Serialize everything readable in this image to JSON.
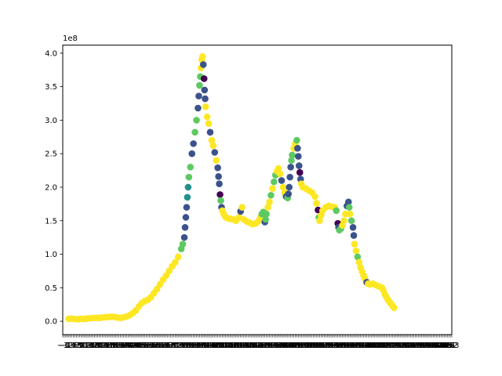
{
  "chart_data": {
    "type": "scatter",
    "title": "",
    "xlabel": "",
    "ylabel": "",
    "y_offset_text": "1e8",
    "xlim": [
      -3,
      253
    ],
    "ylim": [
      -20000000,
      412000000
    ],
    "yticks": [
      {
        "value": 0,
        "label": "0.0"
      },
      {
        "value": 50000000,
        "label": "0.5"
      },
      {
        "value": 100000000,
        "label": "1.0"
      },
      {
        "value": 150000000,
        "label": "1.5"
      },
      {
        "value": 200000000,
        "label": "2.0"
      },
      {
        "value": 250000000,
        "label": "2.5"
      },
      {
        "value": 300000000,
        "label": "3.0"
      },
      {
        "value": 350000000,
        "label": "3.5"
      },
      {
        "value": 400000000,
        "label": "4.0"
      }
    ],
    "xticks_note": "dense overlapping integer tick labels",
    "xtick_step": 1,
    "grid": false,
    "legend": "none",
    "colormap": "viridis",
    "color_levels": {
      "0": "#440154",
      "1": "#3b528b",
      "2": "#21918c",
      "3": "#5ec962",
      "4": "#fde725"
    },
    "series_points": [
      [
        1,
        3500000.0,
        4
      ],
      [
        3,
        3800000.0,
        4
      ],
      [
        5,
        3200000.0,
        4
      ],
      [
        7,
        3000000.0,
        4
      ],
      [
        9,
        3600000.0,
        4
      ],
      [
        11,
        3400000.0,
        4
      ],
      [
        13,
        4000000.0,
        4
      ],
      [
        15,
        4500000.0,
        4
      ],
      [
        17,
        4800000.0,
        4
      ],
      [
        19,
        5200000.0,
        4
      ],
      [
        21,
        5000000.0,
        4
      ],
      [
        23,
        5500000.0,
        4
      ],
      [
        25,
        6000000.0,
        4
      ],
      [
        27,
        6300000.0,
        4
      ],
      [
        29,
        6800000.0,
        4
      ],
      [
        31,
        6500000.0,
        4
      ],
      [
        33,
        5500000.0,
        4
      ],
      [
        35,
        5000000.0,
        4
      ],
      [
        37,
        5800000.0,
        4
      ],
      [
        39,
        7000000.0,
        4
      ],
      [
        41,
        9000000.0,
        4
      ],
      [
        43,
        12000000.0,
        4
      ],
      [
        45,
        16000000.0,
        4
      ],
      [
        47,
        22000000.0,
        4
      ],
      [
        49,
        27000000.0,
        4
      ],
      [
        51,
        30000000.0,
        4
      ],
      [
        53,
        32000000.0,
        4
      ],
      [
        55,
        36000000.0,
        4
      ],
      [
        57,
        42000000.0,
        4
      ],
      [
        59,
        48000000.0,
        4
      ],
      [
        61,
        55000000.0,
        4
      ],
      [
        63,
        62000000.0,
        4
      ],
      [
        65,
        68000000.0,
        4
      ],
      [
        67,
        75000000.0,
        4
      ],
      [
        69,
        82000000.0,
        4
      ],
      [
        71,
        88000000.0,
        4
      ],
      [
        73,
        96000000.0,
        4
      ],
      [
        75,
        108000000.0,
        3
      ],
      [
        76,
        115000000.0,
        3
      ],
      [
        77,
        125000000.0,
        1
      ],
      [
        77.5,
        140000000.0,
        1
      ],
      [
        78,
        155000000.0,
        1
      ],
      [
        78.5,
        170000000.0,
        1
      ],
      [
        79,
        185000000.0,
        2
      ],
      [
        79.5,
        200000000.0,
        2
      ],
      [
        80,
        215000000.0,
        3
      ],
      [
        81,
        230000000.0,
        3
      ],
      [
        82,
        250000000.0,
        1
      ],
      [
        83,
        265000000.0,
        1
      ],
      [
        84,
        282000000.0,
        3
      ],
      [
        85,
        300000000.0,
        3
      ],
      [
        86,
        318000000.0,
        1
      ],
      [
        86.5,
        336000000.0,
        1
      ],
      [
        87,
        352000000.0,
        3
      ],
      [
        87.5,
        365000000.0,
        3
      ],
      [
        88,
        378000000.0,
        4
      ],
      [
        88.5,
        390000000.0,
        4
      ],
      [
        89,
        395000000.0,
        4
      ],
      [
        89.5,
        383000000.0,
        1
      ],
      [
        90,
        362000000.0,
        0
      ],
      [
        90.3,
        345000000.0,
        1
      ],
      [
        90.7,
        332000000.0,
        1
      ],
      [
        91,
        320000000.0,
        4
      ],
      [
        92,
        305000000.0,
        4
      ],
      [
        93,
        295000000.0,
        4
      ],
      [
        94,
        282000000.0,
        1
      ],
      [
        95,
        270000000.0,
        4
      ],
      [
        96,
        262000000.0,
        4
      ],
      [
        97,
        252000000.0,
        1
      ],
      [
        98,
        240000000.0,
        4
      ],
      [
        99,
        229000000.0,
        1
      ],
      [
        99.5,
        216000000.0,
        1
      ],
      [
        100,
        205000000.0,
        1
      ],
      [
        100.5,
        189000000.0,
        0
      ],
      [
        101,
        180000000.0,
        3
      ],
      [
        101.5,
        170000000.0,
        1
      ],
      [
        102,
        165000000.0,
        4
      ],
      [
        103,
        160000000.0,
        4
      ],
      [
        104,
        156000000.0,
        4
      ],
      [
        105,
        154000000.0,
        4
      ],
      [
        107,
        153000000.0,
        4
      ],
      [
        109,
        152000000.0,
        4
      ],
      [
        111,
        150000000.0,
        4
      ],
      [
        113,
        155000000.0,
        4
      ],
      [
        114,
        164000000.0,
        1
      ],
      [
        115,
        170000000.0,
        4
      ],
      [
        116,
        152000000.0,
        4
      ],
      [
        118,
        149000000.0,
        4
      ],
      [
        120,
        147000000.0,
        4
      ],
      [
        122,
        145000000.0,
        4
      ],
      [
        124,
        146000000.0,
        4
      ],
      [
        126,
        150000000.0,
        4
      ],
      [
        127,
        155000000.0,
        4
      ],
      [
        128,
        160000000.0,
        3
      ],
      [
        129,
        163000000.0,
        3
      ],
      [
        130,
        148000000.0,
        1
      ],
      [
        130.5,
        152000000.0,
        3
      ],
      [
        131,
        160000000.0,
        3
      ],
      [
        132,
        170000000.0,
        4
      ],
      [
        133,
        178000000.0,
        4
      ],
      [
        134,
        188000000.0,
        3
      ],
      [
        135,
        198000000.0,
        4
      ],
      [
        136,
        208000000.0,
        3
      ],
      [
        137,
        218000000.0,
        3
      ],
      [
        138,
        224000000.0,
        4
      ],
      [
        139,
        228000000.0,
        4
      ],
      [
        140,
        220000000.0,
        4
      ],
      [
        141,
        210000000.0,
        1
      ],
      [
        142,
        200000000.0,
        4
      ],
      [
        143,
        192000000.0,
        4
      ],
      [
        144,
        186000000.0,
        1
      ],
      [
        145,
        184000000.0,
        3
      ],
      [
        145.5,
        190000000.0,
        1
      ],
      [
        146,
        200000000.0,
        1
      ],
      [
        146.5,
        215000000.0,
        1
      ],
      [
        147,
        230000000.0,
        1
      ],
      [
        147.5,
        240000000.0,
        3
      ],
      [
        148,
        248000000.0,
        3
      ],
      [
        149,
        258000000.0,
        4
      ],
      [
        150,
        265000000.0,
        4
      ],
      [
        151,
        270000000.0,
        3
      ],
      [
        151.5,
        258000000.0,
        1
      ],
      [
        152,
        246000000.0,
        1
      ],
      [
        152.5,
        232000000.0,
        1
      ],
      [
        153,
        222000000.0,
        0
      ],
      [
        153.5,
        212000000.0,
        1
      ],
      [
        154,
        205000000.0,
        4
      ],
      [
        155,
        200000000.0,
        4
      ],
      [
        157,
        198000000.0,
        4
      ],
      [
        159,
        195000000.0,
        4
      ],
      [
        161,
        192000000.0,
        4
      ],
      [
        163,
        186000000.0,
        4
      ],
      [
        164,
        176000000.0,
        4
      ],
      [
        165,
        166000000.0,
        0
      ],
      [
        165.5,
        155000000.0,
        3
      ],
      [
        166,
        150000000.0,
        4
      ],
      [
        167,
        158000000.0,
        4
      ],
      [
        168,
        165000000.0,
        4
      ],
      [
        170,
        170000000.0,
        4
      ],
      [
        172,
        172000000.0,
        4
      ],
      [
        174,
        171000000.0,
        4
      ],
      [
        176,
        170000000.0,
        4
      ],
      [
        177,
        165000000.0,
        3
      ],
      [
        178,
        146000000.0,
        0
      ],
      [
        178.5,
        140000000.0,
        1
      ],
      [
        179,
        136000000.0,
        3
      ],
      [
        180,
        138000000.0,
        3
      ],
      [
        181,
        143000000.0,
        4
      ],
      [
        182,
        150000000.0,
        4
      ],
      [
        183,
        160000000.0,
        4
      ],
      [
        184,
        172000000.0,
        1
      ],
      [
        185,
        178000000.0,
        1
      ],
      [
        185.5,
        170000000.0,
        3
      ],
      [
        186,
        160000000.0,
        4
      ],
      [
        187,
        150000000.0,
        3
      ],
      [
        188,
        140000000.0,
        1
      ],
      [
        188.5,
        128000000.0,
        1
      ],
      [
        189,
        115000000.0,
        4
      ],
      [
        190,
        105000000.0,
        4
      ],
      [
        191,
        96000000.0,
        3
      ],
      [
        192,
        88000000.0,
        4
      ],
      [
        193,
        80000000.0,
        4
      ],
      [
        194,
        74000000.0,
        4
      ],
      [
        195,
        68000000.0,
        4
      ],
      [
        196,
        63000000.0,
        4
      ],
      [
        197,
        58000000.0,
        1
      ],
      [
        198,
        56000000.0,
        4
      ],
      [
        199,
        55000000.0,
        4
      ],
      [
        201,
        56000000.0,
        4
      ],
      [
        203,
        54000000.0,
        4
      ],
      [
        205,
        52000000.0,
        4
      ],
      [
        207,
        50000000.0,
        4
      ],
      [
        208,
        46000000.0,
        4
      ],
      [
        209,
        40000000.0,
        4
      ],
      [
        210,
        36000000.0,
        4
      ],
      [
        211,
        32000000.0,
        4
      ],
      [
        212,
        29000000.0,
        4
      ],
      [
        213,
        26000000.0,
        4
      ],
      [
        214,
        23000000.0,
        4
      ],
      [
        215,
        20000000.0,
        4
      ]
    ]
  }
}
